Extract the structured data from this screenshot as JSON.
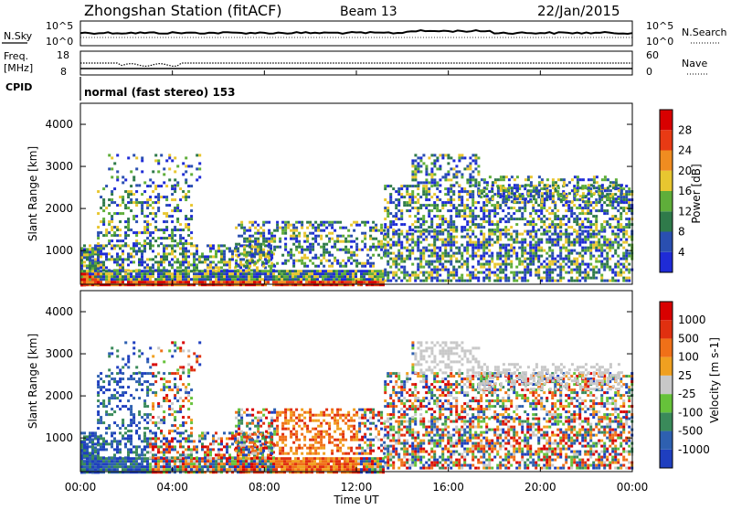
{
  "header": {
    "station": "Zhongshan Station (fitACF)",
    "beam": "Beam 13",
    "date": "22/Jan/2015"
  },
  "top_panel": {
    "left_label": "N.Sky",
    "left_ticks": [
      "10^5",
      "10^0"
    ],
    "right_ticks": [
      "10^5",
      "10^0"
    ],
    "right_label": "N.Search"
  },
  "freq_panel": {
    "left_label_1": "Freq.",
    "left_label_2": "[MHz]",
    "left_ticks": [
      "18",
      "8"
    ],
    "right_ticks": [
      "60",
      "0"
    ],
    "right_label": "Nave"
  },
  "cpid": {
    "label": "CPID",
    "value": "normal (fast stereo) 153"
  },
  "chart_data": [
    {
      "type": "heatmap",
      "name": "Power",
      "ylabel": "Slant Range [km]",
      "y_ticks": [
        "1000",
        "2000",
        "3000",
        "4000"
      ],
      "ylim": [
        200,
        4500
      ],
      "colorbar_label": "Power [dB]",
      "colorbar_ticks": [
        "4",
        "8",
        "12",
        "16",
        "20",
        "24",
        "28"
      ],
      "colorbar_colors": [
        "#1f2bd6",
        "#2a4fb0",
        "#2f7a4a",
        "#5fae3a",
        "#e8c630",
        "#f08c20",
        "#e83a14",
        "#d80000"
      ]
    },
    {
      "type": "heatmap",
      "name": "Velocity",
      "ylabel": "Slant Range [km]",
      "y_ticks": [
        "1000",
        "2000",
        "3000",
        "4000"
      ],
      "ylim": [
        200,
        4500
      ],
      "colorbar_label": "Velocity [m s-1]",
      "colorbar_ticks": [
        "1000",
        "500",
        "100",
        "25",
        "-25",
        "-100",
        "-500",
        "-1000"
      ],
      "colorbar_colors": [
        "#1f3fbf",
        "#2e60b0",
        "#3a8a5a",
        "#66c23a",
        "#c8c8c8",
        "#f0a020",
        "#f07018",
        "#e03010",
        "#d80000"
      ]
    }
  ],
  "x_axis": {
    "ticks": [
      "00:00",
      "04:00",
      "08:00",
      "12:00",
      "16:00",
      "20:00",
      "00:00"
    ],
    "label": "Time UT"
  }
}
